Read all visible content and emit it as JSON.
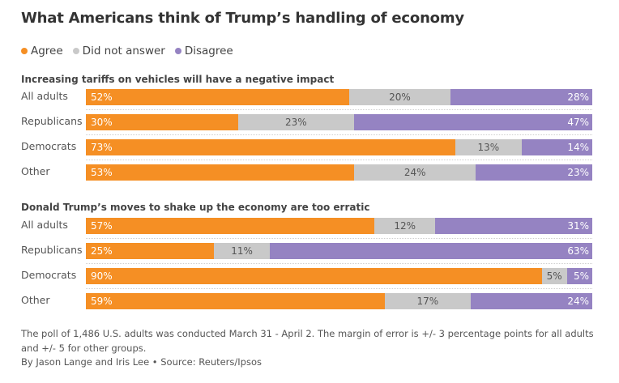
{
  "title": "What Americans think of Trump’s handling of economy",
  "legend": [
    {
      "label": "Agree",
      "color": "#f58f24"
    },
    {
      "label": "Did not answer",
      "color": "#c9c9c9"
    },
    {
      "label": "Disagree",
      "color": "#9583c2"
    }
  ],
  "chart_data": [
    {
      "type": "bar",
      "orientation": "horizontal",
      "stacked": true,
      "title": "Increasing tariffs on vehicles will have a negative impact",
      "categories": [
        "All adults",
        "Republicans",
        "Democrats",
        "Other"
      ],
      "series": [
        {
          "name": "Agree",
          "values": [
            52,
            30,
            73,
            53
          ],
          "labels": [
            "52%",
            "30%",
            "73%",
            "53%"
          ]
        },
        {
          "name": "Did not answer",
          "values": [
            20,
            23,
            13,
            24
          ],
          "labels": [
            "20%",
            "23%",
            "13%",
            "24%"
          ]
        },
        {
          "name": "Disagree",
          "values": [
            28,
            47,
            14,
            23
          ],
          "labels": [
            "28%",
            "47%",
            "14%",
            "23%"
          ]
        }
      ],
      "xlim": [
        0,
        100
      ],
      "grid": false,
      "legend": "top-left"
    },
    {
      "type": "bar",
      "orientation": "horizontal",
      "stacked": true,
      "title": "Donald Trump’s moves to shake up the economy are too erratic",
      "categories": [
        "All adults",
        "Republicans",
        "Democrats",
        "Other"
      ],
      "series": [
        {
          "name": "Agree",
          "values": [
            57,
            25,
            90,
            59
          ],
          "labels": [
            "57%",
            "25%",
            "90%",
            "59%"
          ]
        },
        {
          "name": "Did not answer",
          "values": [
            12,
            11,
            5,
            17
          ],
          "labels": [
            "12%",
            "11%",
            "5%",
            "17%"
          ]
        },
        {
          "name": "Disagree",
          "values": [
            31,
            63,
            5,
            24
          ],
          "labels": [
            "31%",
            "63%",
            "5%",
            "24%"
          ]
        }
      ],
      "xlim": [
        0,
        100
      ],
      "grid": false,
      "legend": "top-left"
    }
  ],
  "footnote": "The poll of 1,486 U.S. adults was conducted March 31 - April 2. The margin of error is +/- 3 percentage points for all adults and +/- 5 for other groups.",
  "byline": "By Jason Lange and Iris Lee • Source: Reuters/Ipsos"
}
